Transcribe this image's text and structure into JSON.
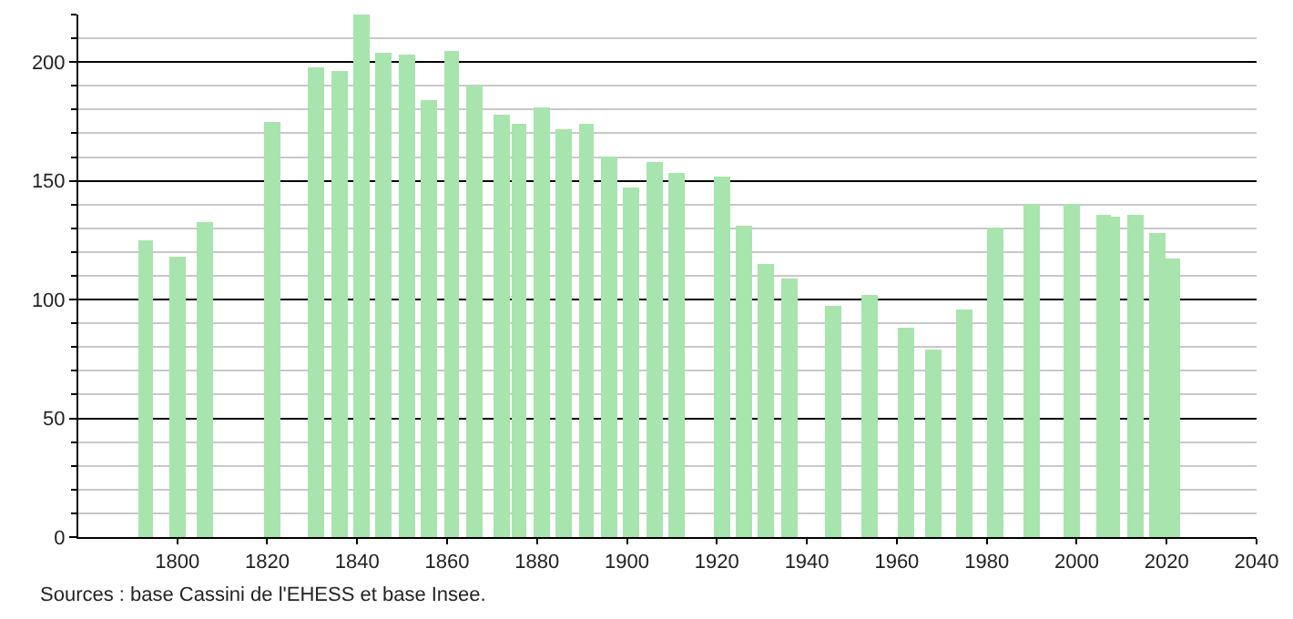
{
  "chart_data": {
    "type": "bar",
    "x": [
      1793,
      1800,
      1806,
      1821,
      1831,
      1836,
      1841,
      1846,
      1851,
      1856,
      1861,
      1866,
      1872,
      1876,
      1881,
      1886,
      1891,
      1896,
      1901,
      1906,
      1911,
      1921,
      1926,
      1931,
      1936,
      1946,
      1954,
      1962,
      1968,
      1975,
      1982,
      1990,
      1999,
      2006,
      2008,
      2013,
      2018,
      2021
    ],
    "values": [
      125,
      118,
      133,
      175,
      198,
      196,
      220,
      204,
      203,
      184,
      205,
      190,
      178,
      174,
      181,
      172,
      174,
      160,
      147,
      158,
      153,
      152,
      131,
      115,
      109,
      97,
      102,
      88,
      79,
      96,
      130,
      140,
      140,
      136,
      135,
      136,
      128,
      117
    ],
    "color": "#a8e4ad",
    "xlim": [
      1778,
      2040
    ],
    "xticks": [
      1800,
      1820,
      1840,
      1860,
      1880,
      1900,
      1920,
      1940,
      1960,
      1980,
      2000,
      2020,
      2040
    ],
    "ylim": [
      0,
      220
    ],
    "yticks": [
      0,
      {
        "value": 10,
        "label": null
      },
      {
        "value": 20,
        "label": null
      },
      {
        "value": 30,
        "label": null
      },
      {
        "value": 40,
        "label": null
      },
      50,
      {
        "value": 60,
        "label": null
      },
      {
        "value": 70,
        "label": null
      },
      {
        "value": 80,
        "label": null
      },
      {
        "value": 90,
        "label": null
      },
      100,
      {
        "value": 110,
        "label": null
      },
      {
        "value": 120,
        "label": null
      },
      {
        "value": 130,
        "label": null
      },
      {
        "value": 140,
        "label": null
      },
      150,
      {
        "value": 160,
        "label": null
      },
      {
        "value": 170,
        "label": null
      },
      {
        "value": 180,
        "label": null
      },
      {
        "value": 190,
        "label": null
      },
      200,
      {
        "value": 210,
        "label": null
      },
      {
        "value": 220,
        "label": null
      }
    ],
    "grid": "y",
    "annotations": [
      "Sources : base Cassini de l'EHESS et base Insee."
    ]
  }
}
